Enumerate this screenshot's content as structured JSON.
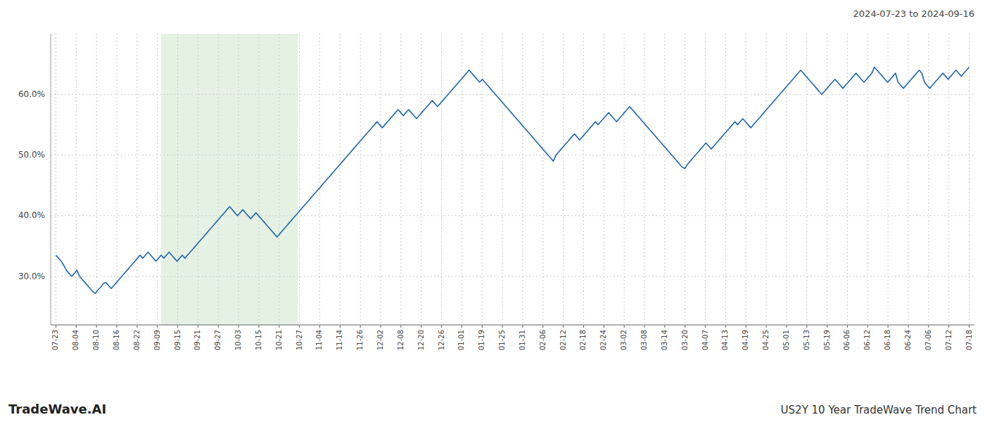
{
  "chart_data": {
    "type": "line",
    "title": "2024-07-23 to 2024-09-16",
    "annotations": [
      "TradeWave.AI",
      "US2Y 10 Year TradeWave Trend Chart"
    ],
    "color": "#2166ac",
    "grid": true,
    "xlim": [
      -2,
      349
    ],
    "xticks": [
      {
        "value": 0,
        "label": "07-23"
      },
      {
        "value": 7.711111111111111,
        "label": "08-04"
      },
      {
        "value": 15.422222222222222,
        "label": "08-10"
      },
      {
        "value": 23.133333333333333,
        "label": "08-16"
      },
      {
        "value": 30.844444444444445,
        "label": "08-22"
      },
      {
        "value": 38.55555555555556,
        "label": "09-09"
      },
      {
        "value": 46.266666666666666,
        "label": "09-15"
      },
      {
        "value": 53.977777777777774,
        "label": "09-21"
      },
      {
        "value": 61.68888888888889,
        "label": "09-27"
      },
      {
        "value": 69.4,
        "label": "10-03"
      },
      {
        "value": 77.11111111111111,
        "label": "10-15"
      },
      {
        "value": 84.82222222222222,
        "label": "10-21"
      },
      {
        "value": 92.53333333333333,
        "label": "10-27"
      },
      {
        "value": 100.24444444444444,
        "label": "11-04"
      },
      {
        "value": 107.95555555555555,
        "label": "11-14"
      },
      {
        "value": 115.66666666666667,
        "label": "11-26"
      },
      {
        "value": 123.37777777777778,
        "label": "12-02"
      },
      {
        "value": 131.0888888888889,
        "label": "12-08"
      },
      {
        "value": 138.8,
        "label": "12-20"
      },
      {
        "value": 146.51111111111112,
        "label": "12-26"
      },
      {
        "value": 154.22222222222223,
        "label": "01-01"
      },
      {
        "value": 161.93333333333334,
        "label": "01-19"
      },
      {
        "value": 169.64444444444445,
        "label": "01-25"
      },
      {
        "value": 177.35555555555555,
        "label": "01-31"
      },
      {
        "value": 185.06666666666666,
        "label": "02-06"
      },
      {
        "value": 192.77777777777777,
        "label": "02-12"
      },
      {
        "value": 200.4888888888889,
        "label": "02-18"
      },
      {
        "value": 208.2,
        "label": "02-24"
      },
      {
        "value": 215.9111111111111,
        "label": "03-02"
      },
      {
        "value": 223.62222222222223,
        "label": "03-08"
      },
      {
        "value": 231.33333333333334,
        "label": "03-14"
      },
      {
        "value": 239.04444444444445,
        "label": "03-20"
      },
      {
        "value": 246.75555555555556,
        "label": "04-07"
      },
      {
        "value": 254.46666666666667,
        "label": "04-13"
      },
      {
        "value": 262.1777777777778,
        "label": "04-19"
      },
      {
        "value": 269.8888888888889,
        "label": "04-25"
      },
      {
        "value": 277.6,
        "label": "05-01"
      },
      {
        "value": 285.31111111111113,
        "label": "05-13"
      },
      {
        "value": 293.02222222222224,
        "label": "05-19"
      },
      {
        "value": 300.73333333333335,
        "label": "06-06"
      },
      {
        "value": 308.44444444444446,
        "label": "06-12"
      },
      {
        "value": 316.15555555555557,
        "label": "06-18"
      },
      {
        "value": 323.8666666666667,
        "label": "06-24"
      },
      {
        "value": 331.5777777777778,
        "label": "07-06"
      },
      {
        "value": 339.2888888888889,
        "label": "07-12"
      },
      {
        "value": 347,
        "label": "07-18"
      }
    ],
    "ylim": [
      22,
      70
    ],
    "yticks": [
      {
        "value": 30,
        "label": "30.0%"
      },
      {
        "value": 40,
        "label": "40.0%"
      },
      {
        "value": 50,
        "label": "50.0%"
      },
      {
        "value": 60,
        "label": "60.0%"
      }
    ],
    "shaded_region": {
      "start": 39.905,
      "end": 91.955,
      "color": "#d6ead4"
    },
    "values": [
      33.5,
      33.0,
      32.5,
      31.8,
      31.0,
      30.5,
      30.0,
      30.5,
      31.0,
      30.0,
      29.5,
      29.0,
      28.5,
      28.0,
      27.5,
      27.2,
      27.8,
      28.2,
      28.8,
      29.0,
      28.5,
      28.0,
      28.5,
      29.0,
      29.5,
      30.0,
      30.5,
      31.0,
      31.5,
      32.0,
      32.5,
      33.0,
      33.5,
      33.0,
      33.5,
      34.0,
      33.5,
      33.0,
      32.5,
      33.0,
      33.5,
      33.0,
      33.5,
      34.0,
      33.5,
      33.0,
      32.5,
      33.0,
      33.5,
      33.0,
      33.5,
      34.0,
      34.5,
      35.0,
      35.5,
      36.0,
      36.5,
      37.0,
      37.5,
      38.0,
      38.5,
      39.0,
      39.5,
      40.0,
      40.5,
      41.0,
      41.5,
      41.0,
      40.5,
      40.0,
      40.5,
      41.0,
      40.5,
      40.0,
      39.5,
      40.0,
      40.5,
      40.0,
      39.5,
      39.0,
      38.5,
      38.0,
      37.5,
      37.0,
      36.5,
      37.0,
      37.5,
      38.0,
      38.5,
      39.0,
      39.5,
      40.0,
      40.5,
      41.0,
      41.5,
      42.0,
      42.5,
      43.0,
      43.5,
      44.0,
      44.5,
      45.0,
      45.5,
      46.0,
      46.5,
      47.0,
      47.5,
      48.0,
      48.5,
      49.0,
      49.5,
      50.0,
      50.5,
      51.0,
      51.5,
      52.0,
      52.5,
      53.0,
      53.5,
      54.0,
      54.5,
      55.0,
      55.5,
      55.0,
      54.5,
      55.0,
      55.5,
      56.0,
      56.5,
      57.0,
      57.5,
      57.0,
      56.5,
      57.0,
      57.5,
      57.0,
      56.5,
      56.0,
      56.5,
      57.0,
      57.5,
      58.0,
      58.5,
      59.0,
      58.5,
      58.0,
      58.5,
      59.0,
      59.5,
      60.0,
      60.5,
      61.0,
      61.5,
      62.0,
      62.5,
      63.0,
      63.5,
      64.0,
      63.5,
      63.0,
      62.5,
      62.0,
      62.5,
      62.0,
      61.5,
      61.0,
      60.5,
      60.0,
      59.5,
      59.0,
      58.5,
      58.0,
      57.5,
      57.0,
      56.5,
      56.0,
      55.5,
      55.0,
      54.5,
      54.0,
      53.5,
      53.0,
      52.5,
      52.0,
      51.5,
      51.0,
      50.5,
      50.0,
      49.5,
      49.0,
      50.0,
      50.5,
      51.0,
      51.5,
      52.0,
      52.5,
      53.0,
      53.5,
      53.0,
      52.5,
      53.0,
      53.5,
      54.0,
      54.5,
      55.0,
      55.5,
      55.0,
      55.5,
      56.0,
      56.5,
      57.0,
      56.5,
      56.0,
      55.5,
      56.0,
      56.5,
      57.0,
      57.5,
      58.0,
      57.5,
      57.0,
      56.5,
      56.0,
      55.5,
      55.0,
      54.5,
      54.0,
      53.5,
      53.0,
      52.5,
      52.0,
      51.5,
      51.0,
      50.5,
      50.0,
      49.5,
      49.0,
      48.5,
      48.0,
      47.8,
      48.5,
      49.0,
      49.5,
      50.0,
      50.5,
      51.0,
      51.5,
      52.0,
      51.5,
      51.0,
      51.5,
      52.0,
      52.5,
      53.0,
      53.5,
      54.0,
      54.5,
      55.0,
      55.5,
      55.0,
      55.5,
      56.0,
      55.5,
      55.0,
      54.5,
      55.0,
      55.5,
      56.0,
      56.5,
      57.0,
      57.5,
      58.0,
      58.5,
      59.0,
      59.5,
      60.0,
      60.5,
      61.0,
      61.5,
      62.0,
      62.5,
      63.0,
      63.5,
      64.0,
      63.5,
      63.0,
      62.5,
      62.0,
      61.5,
      61.0,
      60.5,
      60.0,
      60.5,
      61.0,
      61.5,
      62.0,
      62.5,
      62.0,
      61.5,
      61.0,
      61.5,
      62.0,
      62.5,
      63.0,
      63.5,
      63.0,
      62.5,
      62.0,
      62.5,
      63.0,
      63.5,
      64.5,
      64.0,
      63.5,
      63.0,
      62.5,
      62.0,
      62.5,
      63.0,
      63.5,
      62.0,
      61.5,
      61.0,
      61.5,
      62.0,
      62.5,
      63.0,
      63.5,
      64.0,
      63.5,
      62.0,
      61.5,
      61.0,
      61.5,
      62.0,
      62.5,
      63.0,
      63.5,
      63.0,
      62.5,
      63.0,
      63.5,
      64.0,
      63.5,
      63.0,
      63.5,
      64.0,
      64.5
    ]
  }
}
